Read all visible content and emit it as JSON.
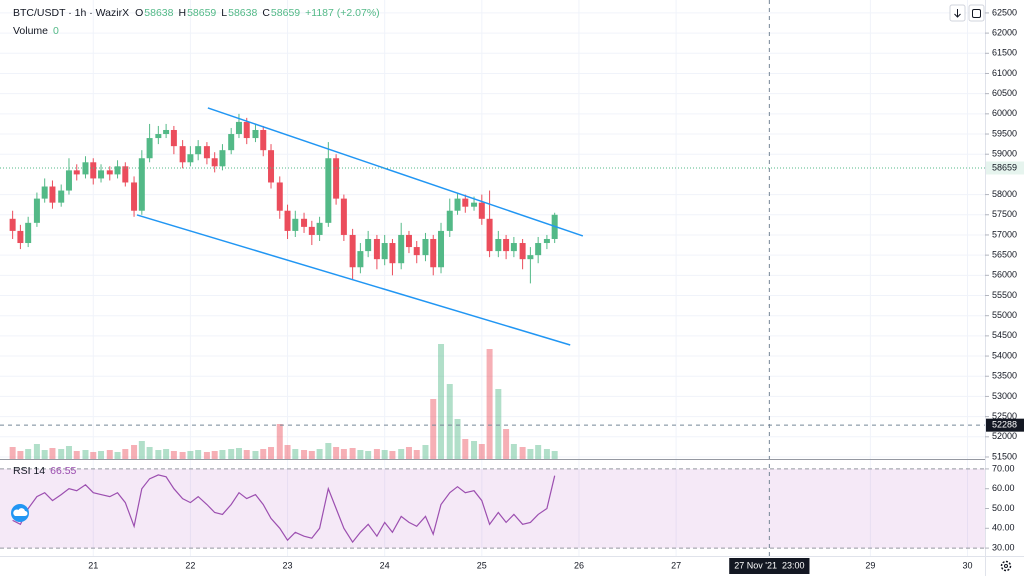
{
  "chart_data": {
    "type": "candlestick",
    "title": "BTC/USDT · 1h · WazirX",
    "quote": {
      "o_label": "O",
      "o": 58638,
      "h_label": "H",
      "h": 58659,
      "l_label": "L",
      "l": 58638,
      "c_label": "C",
      "c": 58659,
      "change": "+1187 (+2.07%)"
    },
    "up_color": "#53b987",
    "down_color": "#eb4d5c",
    "x": [
      20.17,
      20.25,
      20.33,
      20.42,
      20.5,
      20.58,
      20.67,
      20.75,
      20.83,
      20.92,
      21.0,
      21.08,
      21.17,
      21.25,
      21.33,
      21.42,
      21.5,
      21.58,
      21.67,
      21.75,
      21.83,
      21.92,
      22.0,
      22.08,
      22.17,
      22.25,
      22.33,
      22.42,
      22.5,
      22.58,
      22.67,
      22.75,
      22.83,
      22.92,
      23.0,
      23.08,
      23.17,
      23.25,
      23.33,
      23.42,
      23.5,
      23.58,
      23.67,
      23.75,
      23.83,
      23.92,
      24.0,
      24.08,
      24.17,
      24.25,
      24.33,
      24.42,
      24.5,
      24.58,
      24.67,
      24.75,
      24.83,
      24.92,
      25.0,
      25.08,
      25.17,
      25.25,
      25.33,
      25.42,
      25.5,
      25.58,
      25.67,
      25.75
    ],
    "open": [
      57400,
      57100,
      56800,
      57300,
      57900,
      58200,
      57800,
      58100,
      58600,
      58500,
      58800,
      58400,
      58600,
      58500,
      58700,
      58300,
      57600,
      58900,
      59400,
      59500,
      59600,
      59200,
      58800,
      59000,
      59200,
      58900,
      58700,
      59100,
      59500,
      59800,
      59400,
      59600,
      59100,
      58300,
      57600,
      57100,
      57400,
      57200,
      57000,
      57300,
      58900,
      57900,
      57000,
      56200,
      56600,
      56900,
      56400,
      56800,
      56300,
      57000,
      56700,
      56500,
      56900,
      56200,
      57100,
      57600,
      57900,
      57700,
      57800,
      57400,
      56600,
      56900,
      56600,
      56800,
      56400,
      56500,
      56800,
      56900
    ],
    "high": [
      57600,
      57250,
      57450,
      58050,
      58400,
      58350,
      58250,
      58900,
      58750,
      58950,
      58900,
      58750,
      58700,
      58850,
      58800,
      58450,
      59100,
      59750,
      59700,
      59750,
      59700,
      59350,
      59200,
      59350,
      59300,
      59050,
      59250,
      59650,
      60000,
      59900,
      59750,
      59700,
      59250,
      58450,
      57750,
      57600,
      57550,
      57350,
      57450,
      59300,
      59000,
      58000,
      57150,
      56800,
      57100,
      57000,
      57000,
      56900,
      57300,
      57100,
      56850,
      57050,
      57000,
      57300,
      57900,
      58050,
      58000,
      57950,
      58000,
      58100,
      57100,
      57000,
      56950,
      56900,
      56700,
      56950,
      57000,
      57550
    ],
    "low": [
      56900,
      56650,
      56700,
      57200,
      57800,
      57650,
      57700,
      58000,
      58350,
      58400,
      58250,
      58300,
      58350,
      58400,
      58200,
      57450,
      57500,
      58800,
      59250,
      59400,
      59000,
      58650,
      58700,
      58850,
      58750,
      58550,
      58600,
      59000,
      59400,
      59250,
      59300,
      58950,
      58150,
      57400,
      56900,
      56950,
      57050,
      56750,
      56850,
      57200,
      57750,
      56850,
      55900,
      56050,
      56450,
      56150,
      56250,
      56000,
      56150,
      56550,
      56300,
      56350,
      56000,
      56050,
      56950,
      57500,
      57550,
      57600,
      57250,
      56450,
      56450,
      56400,
      56450,
      56150,
      55800,
      56300,
      56650,
      56800
    ],
    "close": [
      57100,
      56800,
      57300,
      57900,
      58200,
      57800,
      58100,
      58600,
      58500,
      58800,
      58400,
      58600,
      58500,
      58700,
      58300,
      57600,
      58900,
      59400,
      59500,
      59600,
      59200,
      58800,
      59000,
      59200,
      58900,
      58700,
      59100,
      59500,
      59800,
      59400,
      59600,
      59100,
      58300,
      57600,
      57100,
      57400,
      57200,
      57000,
      57300,
      58900,
      57900,
      57000,
      56200,
      56600,
      56900,
      56400,
      56800,
      56300,
      57000,
      56700,
      56500,
      56900,
      56200,
      57100,
      57600,
      57900,
      57700,
      57800,
      57400,
      56600,
      56900,
      56600,
      56800,
      56400,
      56500,
      56800,
      56900,
      57500
    ],
    "volume": {
      "name": "Volume",
      "value": 0,
      "values": [
        12,
        8,
        10,
        15,
        9,
        11,
        10,
        13,
        8,
        9,
        7,
        8,
        9,
        7,
        10,
        14,
        18,
        12,
        9,
        10,
        8,
        7,
        8,
        9,
        7,
        8,
        9,
        10,
        11,
        9,
        8,
        10,
        12,
        35,
        14,
        10,
        9,
        8,
        10,
        16,
        12,
        10,
        11,
        9,
        8,
        10,
        9,
        8,
        10,
        12,
        9,
        14,
        60,
        115,
        75,
        40,
        20,
        18,
        15,
        110,
        70,
        30,
        15,
        12,
        10,
        14,
        10,
        8
      ]
    },
    "ylim": [
      51450,
      62820
    ],
    "yticks": [
      51500,
      52000,
      52500,
      53000,
      53500,
      54000,
      54500,
      55000,
      55500,
      56000,
      56500,
      57000,
      57500,
      58000,
      59000,
      59500,
      60000,
      60500,
      61000,
      61500,
      62000,
      62500
    ],
    "xlim": [
      20.04,
      30.18
    ],
    "xticks": [
      21,
      22,
      23,
      24,
      25,
      26,
      27,
      29,
      30
    ],
    "grid": true,
    "crosshair": {
      "x": 27.96,
      "time": "27 Nov '21  23:00",
      "price": 52288
    },
    "trendlines": [
      {
        "color": "#2196f3",
        "x": [
          22.18,
          26.04
        ],
        "y": [
          60147,
          56975
        ]
      },
      {
        "color": "#2196f3",
        "x": [
          21.45,
          25.91
        ],
        "y": [
          57495,
          54274
        ]
      }
    ],
    "rsi": {
      "name": "RSI 14",
      "color": "#9c4fb0",
      "band": [
        30,
        70
      ],
      "values": [
        44,
        42,
        50,
        56,
        58,
        54,
        57,
        60,
        59,
        62,
        58,
        57,
        56,
        58,
        53,
        41,
        60,
        65,
        67,
        66,
        60,
        55,
        53,
        56,
        52,
        48,
        47,
        52,
        58,
        55,
        57,
        52,
        45,
        40,
        34,
        38,
        36,
        35,
        40,
        60,
        50,
        40,
        33,
        38,
        42,
        36,
        43,
        38,
        46,
        43,
        41,
        46,
        37,
        52,
        58,
        61,
        58,
        59,
        54,
        42,
        48,
        43,
        47,
        42,
        43,
        47,
        50,
        66.55
      ],
      "ylim": [
        26,
        74
      ],
      "yticks": [
        {
          "value": 30,
          "label": "30.00"
        },
        {
          "value": 40,
          "label": "40.00"
        },
        {
          "value": 50,
          "label": "50.00"
        },
        {
          "value": 60,
          "label": "60.00"
        },
        {
          "value": 70,
          "label": "70.00"
        }
      ]
    }
  }
}
